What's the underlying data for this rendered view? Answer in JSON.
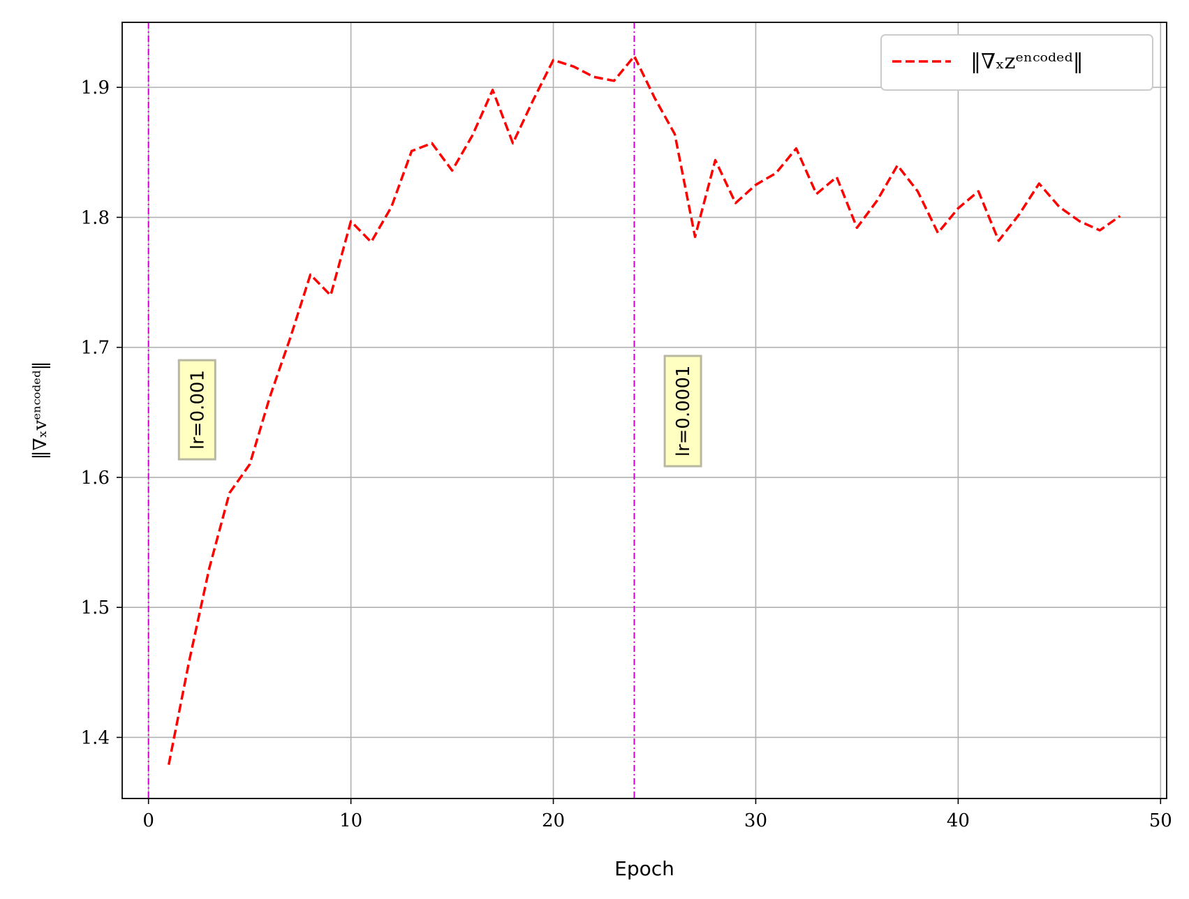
{
  "chart_data": {
    "type": "line",
    "xlabel": "Epoch",
    "ylabel": "‖∇ₓvᵉⁿᶜᵒᵈᵉᵈ‖",
    "xlim": [
      -1.3,
      50.3
    ],
    "ylim": [
      1.353,
      1.95
    ],
    "xticks": [
      0,
      10,
      20,
      30,
      40,
      50
    ],
    "yticks": [
      1.4,
      1.5,
      1.6,
      1.7,
      1.8,
      1.9
    ],
    "grid": true,
    "legend_position": "top-right",
    "series": [
      {
        "name": "‖∇ₓzᵉⁿᶜᵒᵈᵉᵈ‖",
        "color": "#ff0000",
        "style": "dashed",
        "x": [
          1,
          2,
          3,
          4,
          5,
          6,
          7,
          8,
          9,
          10,
          11,
          12,
          13,
          14,
          15,
          16,
          17,
          18,
          19,
          20,
          21,
          22,
          23,
          24,
          25,
          26,
          27,
          28,
          29,
          30,
          31,
          32,
          33,
          34,
          35,
          36,
          37,
          38,
          39,
          40,
          41,
          42,
          43,
          44,
          45,
          46,
          47,
          48
        ],
        "y": [
          1.379,
          1.458,
          1.53,
          1.588,
          1.61,
          1.662,
          1.707,
          1.756,
          1.74,
          1.797,
          1.781,
          1.808,
          1.851,
          1.857,
          1.836,
          1.863,
          1.898,
          1.857,
          1.89,
          1.921,
          1.916,
          1.908,
          1.905,
          1.924,
          1.892,
          1.864,
          1.785,
          1.844,
          1.811,
          1.825,
          1.834,
          1.853,
          1.818,
          1.831,
          1.792,
          1.813,
          1.84,
          1.82,
          1.788,
          1.807,
          1.82,
          1.782,
          1.802,
          1.826,
          1.808,
          1.797,
          1.79,
          1.801
        ]
      }
    ],
    "vlines": [
      {
        "x": 0,
        "color": "#cc00cc",
        "style": "dashdot"
      },
      {
        "x": 24,
        "color": "#cc00cc",
        "style": "dashdot"
      }
    ],
    "annotations": [
      {
        "text": "lr=0.001",
        "x": 2.4,
        "y_center": 1.652,
        "rotation": -90,
        "box_color": "#ffffb3"
      },
      {
        "text": "lr=0.0001",
        "x": 26.4,
        "y_center": 1.651,
        "rotation": -90,
        "box_color": "#ffffb3"
      }
    ]
  }
}
